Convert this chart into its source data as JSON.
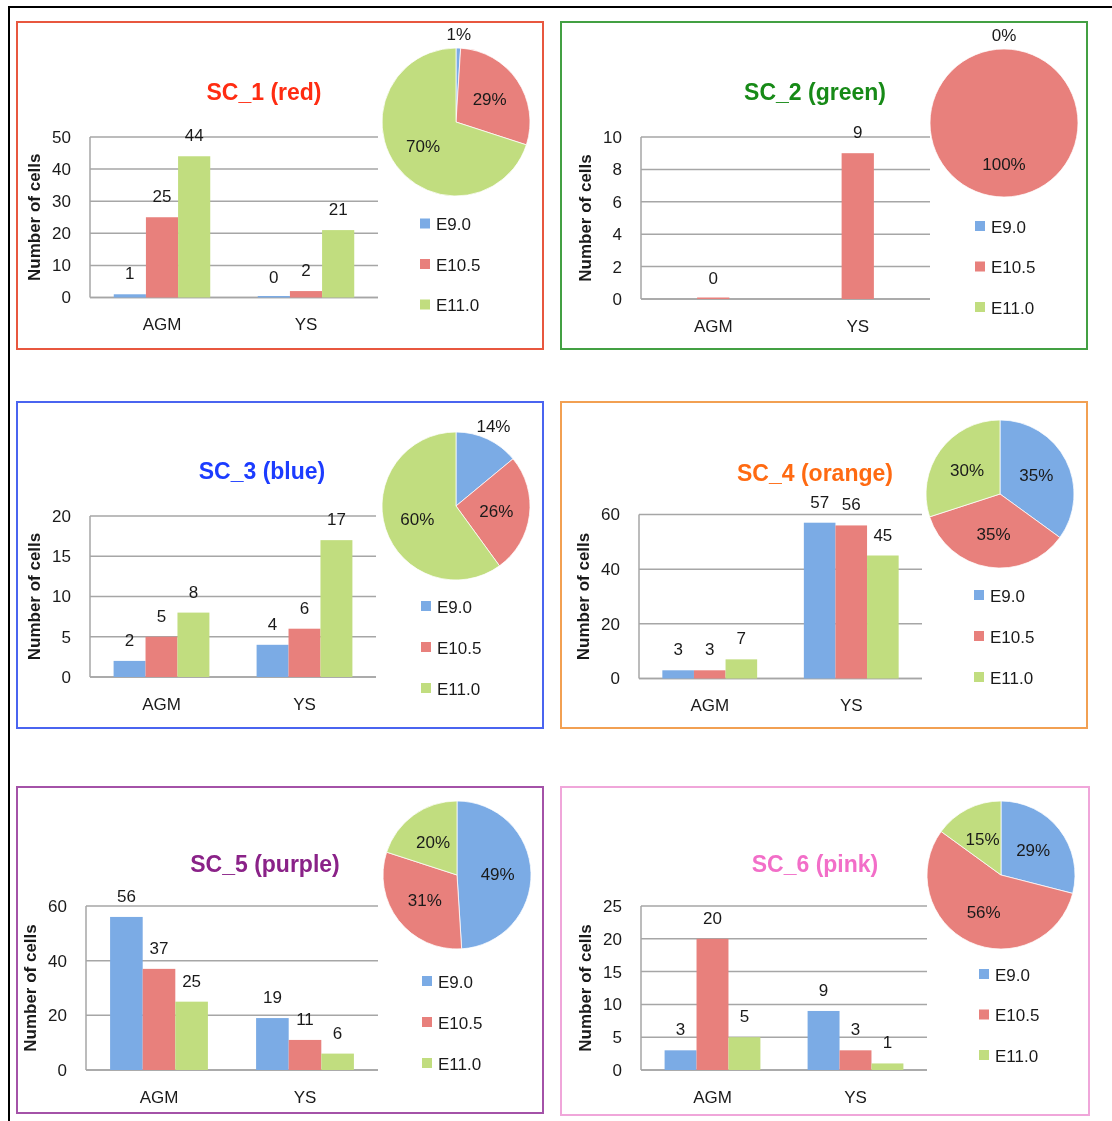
{
  "chart_data": [
    {
      "type": "bar",
      "title": "SC_1 (red)",
      "ylabel": "Number of cells",
      "categories": [
        "AGM",
        "YS"
      ],
      "series": [
        {
          "color": "#7babe5",
          "values": [
            1,
            0
          ]
        },
        {
          "color": "#e8807c",
          "values": [
            25,
            2
          ]
        },
        {
          "color": "#c1dd7f",
          "values": [
            44,
            21
          ]
        }
      ],
      "ylim": [
        0,
        50
      ],
      "yticks": [
        0,
        10,
        20,
        30,
        40,
        50
      ],
      "grid": "y",
      "data_labels": true
    },
    {
      "type": "pie",
      "categories": [
        "E9.0",
        "E10.5",
        "E11.0"
      ],
      "values": [
        1,
        29,
        70
      ],
      "colors": [
        "#7babe5",
        "#e8807c",
        "#c1dd7f"
      ],
      "value_labels": [
        "1%",
        "29%",
        "70%"
      ],
      "legend": "bottom"
    },
    {
      "type": "bar",
      "title": "SC_2 (green)",
      "ylabel": "Number of cells",
      "categories": [
        "AGM",
        "YS"
      ],
      "series": [
        {
          "color": "#7babe5",
          "values": [
            0,
            0
          ],
          "value_labels": [
            null,
            null
          ]
        },
        {
          "color": "#e8807c",
          "values": [
            0,
            9
          ]
        },
        {
          "color": "#c1dd7f",
          "values": [
            0,
            0
          ],
          "value_labels": [
            null,
            null
          ]
        }
      ],
      "ylim": [
        0,
        10
      ],
      "yticks": [
        0,
        2,
        4,
        6,
        8,
        10
      ],
      "grid": "y",
      "data_labels": true
    },
    {
      "type": "pie",
      "categories": [
        "E9.0",
        "E10.5",
        "E11.0"
      ],
      "values": [
        0,
        100,
        0
      ],
      "colors": [
        "#7babe5",
        "#e8807c",
        "#c1dd7f"
      ],
      "value_labels": [
        "0%",
        "100%",
        null
      ],
      "legend": "bottom"
    },
    {
      "type": "bar",
      "title": "SC_3 (blue)",
      "ylabel": "Number of cells",
      "categories": [
        "AGM",
        "YS"
      ],
      "series": [
        {
          "color": "#7babe5",
          "values": [
            2,
            4
          ]
        },
        {
          "color": "#e8807c",
          "values": [
            5,
            6
          ]
        },
        {
          "color": "#c1dd7f",
          "values": [
            8,
            17
          ]
        }
      ],
      "ylim": [
        0,
        20
      ],
      "yticks": [
        0,
        5,
        10,
        15,
        20
      ],
      "grid": "y",
      "data_labels": true
    },
    {
      "type": "pie",
      "categories": [
        "E9.0",
        "E10.5",
        "E11.0"
      ],
      "values": [
        14,
        26,
        60
      ],
      "colors": [
        "#7babe5",
        "#e8807c",
        "#c1dd7f"
      ],
      "value_labels": [
        "14%",
        "26%",
        "60%"
      ],
      "legend": "bottom"
    },
    {
      "type": "bar",
      "title": "SC_4 (orange)",
      "ylabel": "Number of cells",
      "categories": [
        "AGM",
        "YS"
      ],
      "series": [
        {
          "color": "#7babe5",
          "values": [
            3,
            57
          ]
        },
        {
          "color": "#e8807c",
          "values": [
            3,
            56
          ]
        },
        {
          "color": "#c1dd7f",
          "values": [
            7,
            45
          ]
        }
      ],
      "ylim": [
        0,
        60
      ],
      "yticks": [
        0,
        20,
        40,
        60
      ],
      "grid": "y",
      "data_labels": true
    },
    {
      "type": "pie",
      "categories": [
        "E9.0",
        "E10.5",
        "E11.0"
      ],
      "values": [
        35,
        35,
        30
      ],
      "colors": [
        "#7babe5",
        "#e8807c",
        "#c1dd7f"
      ],
      "value_labels": [
        "35%",
        "35%",
        "30%"
      ],
      "legend": "bottom"
    },
    {
      "type": "bar",
      "title": "SC_5 (purple)",
      "ylabel": "Number of cells",
      "categories": [
        "AGM",
        "YS"
      ],
      "series": [
        {
          "color": "#7babe5",
          "values": [
            56,
            19
          ]
        },
        {
          "color": "#e8807c",
          "values": [
            37,
            11
          ]
        },
        {
          "color": "#c1dd7f",
          "values": [
            25,
            6
          ]
        }
      ],
      "ylim": [
        0,
        60
      ],
      "yticks": [
        0,
        20,
        40,
        60
      ],
      "grid": "y",
      "data_labels": true
    },
    {
      "type": "pie",
      "categories": [
        "E9.0",
        "E10.5",
        "E11.0"
      ],
      "values": [
        49,
        31,
        20
      ],
      "colors": [
        "#7babe5",
        "#e8807c",
        "#c1dd7f"
      ],
      "value_labels": [
        "49%",
        "31%",
        "20%"
      ],
      "legend": "bottom"
    },
    {
      "type": "bar",
      "title": "SC_6 (pink)",
      "ylabel": "Number of cells",
      "categories": [
        "AGM",
        "YS"
      ],
      "series": [
        {
          "color": "#7babe5",
          "values": [
            3,
            9
          ]
        },
        {
          "color": "#e8807c",
          "values": [
            20,
            3
          ]
        },
        {
          "color": "#c1dd7f",
          "values": [
            5,
            1
          ]
        }
      ],
      "ylim": [
        0,
        25
      ],
      "yticks": [
        0,
        5,
        10,
        15,
        20,
        25
      ],
      "grid": "y",
      "data_labels": true
    },
    {
      "type": "pie",
      "categories": [
        "E9.0",
        "E10.5",
        "E11.0"
      ],
      "values": [
        29,
        56,
        15
      ],
      "colors": [
        "#7babe5",
        "#e8807c",
        "#c1dd7f"
      ],
      "value_labels": [
        "29%",
        "56%",
        "15%"
      ],
      "legend": "bottom"
    }
  ]
}
